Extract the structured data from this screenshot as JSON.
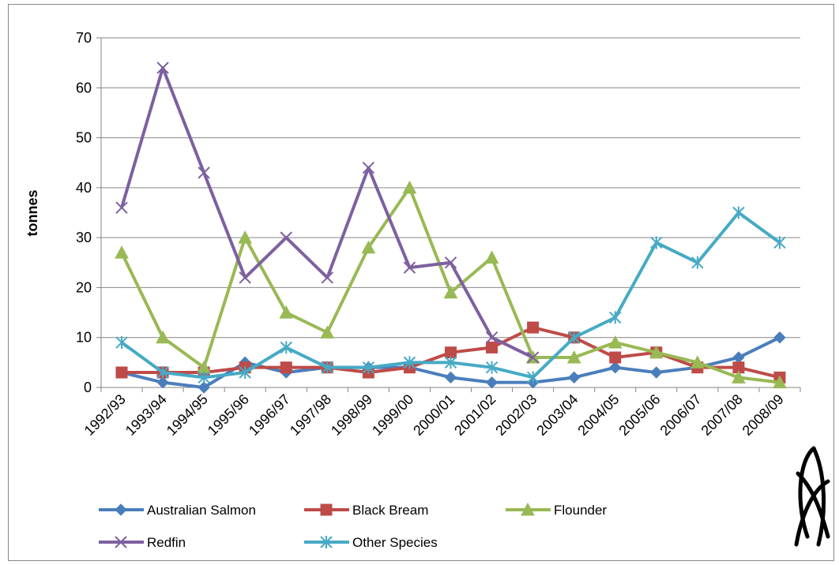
{
  "chart_data": {
    "type": "line",
    "categories": [
      "1992/93",
      "1993/94",
      "1994/95",
      "1995/96",
      "1996/97",
      "1997/98",
      "1998/99",
      "1999/00",
      "2000/01",
      "2001/02",
      "2002/03",
      "2003/04",
      "2004/05",
      "2005/06",
      "2006/07",
      "2007/08",
      "2008/09"
    ],
    "ylabel": "tonnes",
    "ylim": [
      0,
      70
    ],
    "yticks": [
      "0",
      "10",
      "20",
      "30",
      "40",
      "50",
      "60",
      "70"
    ],
    "grid": "horizontal",
    "legend_position": "bottom",
    "series": [
      {
        "name": "Australian Salmon",
        "color": "#4a7ebb",
        "marker": "diamond",
        "values": [
          3,
          1,
          0,
          5,
          3,
          4,
          4,
          4,
          2,
          1,
          1,
          2,
          4,
          3,
          4,
          6,
          10
        ]
      },
      {
        "name": "Black Bream",
        "color": "#be4b48",
        "marker": "square",
        "values": [
          3,
          3,
          3,
          4,
          4,
          4,
          3,
          4,
          7,
          8,
          12,
          10,
          6,
          7,
          4,
          4,
          2
        ]
      },
      {
        "name": "Flounder",
        "color": "#98b954",
        "marker": "triangle",
        "values": [
          27,
          10,
          4,
          30,
          15,
          11,
          28,
          40,
          19,
          26,
          6,
          6,
          9,
          7,
          5,
          2,
          1
        ]
      },
      {
        "name": "Redfin",
        "color": "#7d60a0",
        "marker": "x",
        "values": [
          36,
          64,
          43,
          22,
          30,
          22,
          44,
          24,
          25,
          10,
          6,
          null,
          null,
          null,
          null,
          null,
          null
        ]
      },
      {
        "name": "Other Species",
        "color": "#46aac5",
        "marker": "star",
        "values": [
          9,
          3,
          2,
          3,
          8,
          4,
          4,
          5,
          5,
          4,
          2,
          10,
          14,
          29,
          25,
          35,
          29
        ]
      }
    ]
  }
}
